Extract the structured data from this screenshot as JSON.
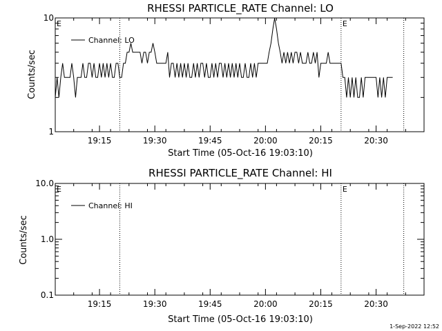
{
  "chart_data": [
    {
      "type": "line",
      "title": "RHESSI PARTICLE_RATE Channel: LO",
      "xlabel": "Start Time (05-Oct-16 19:03:10)",
      "ylabel": "Counts/sec",
      "yscale": "log",
      "ylim": [
        1,
        10
      ],
      "xlim_minutes": [
        0,
        100
      ],
      "x_ticks": [
        {
          "label": "19:15",
          "minute": 12
        },
        {
          "label": "19:30",
          "minute": 27
        },
        {
          "label": "19:45",
          "minute": 42
        },
        {
          "label": "20:00",
          "minute": 57
        },
        {
          "label": "20:15",
          "minute": 72
        },
        {
          "label": "20:30",
          "minute": 87
        }
      ],
      "y_ticks": [
        {
          "label": "1",
          "value": 1
        },
        {
          "label": "10",
          "value": 10
        }
      ],
      "markers": [
        {
          "minute": 17.5,
          "label": ""
        },
        {
          "minute": 77.5,
          "label": "E"
        },
        {
          "minute": 94.5,
          "label": ""
        }
      ],
      "start_marker_label": "E",
      "legend": {
        "position": "top-left",
        "entries": [
          "Channel: LO"
        ]
      },
      "series": [
        {
          "name": "Channel: LO",
          "step": 0.5,
          "start_minute": 0,
          "values": [
            2,
            3,
            2,
            3,
            4,
            3,
            3,
            3,
            3,
            4,
            3,
            2,
            3,
            3,
            3,
            4,
            3,
            3,
            4,
            4,
            3,
            4,
            3,
            3,
            4,
            3,
            4,
            3,
            4,
            3,
            4,
            3,
            3,
            4,
            4,
            3,
            3,
            4,
            4,
            5,
            5,
            6,
            5,
            5,
            5,
            5,
            5,
            4,
            5,
            5,
            4,
            5,
            5,
            6,
            5,
            4,
            4,
            4,
            4,
            4,
            4,
            5,
            3,
            4,
            4,
            3,
            4,
            3,
            4,
            3,
            4,
            3,
            4,
            3,
            3,
            4,
            3,
            4,
            3,
            4,
            4,
            3,
            4,
            3,
            3,
            4,
            3,
            4,
            3,
            4,
            4,
            3,
            4,
            3,
            4,
            3,
            4,
            3,
            4,
            3,
            4,
            3,
            3,
            4,
            3,
            3,
            4,
            3,
            4,
            3,
            4,
            4,
            4,
            4,
            4,
            4,
            5,
            6,
            8,
            11,
            8,
            6,
            5,
            4,
            5,
            4,
            5,
            4,
            5,
            4,
            5,
            5,
            4,
            5,
            4,
            4,
            4,
            5,
            4,
            4,
            5,
            4,
            5,
            3,
            4,
            4,
            4,
            4,
            5,
            4,
            4,
            4,
            4,
            4,
            4,
            4,
            3,
            3,
            2,
            3,
            2,
            3,
            2,
            3,
            2,
            2,
            3,
            2,
            3,
            3,
            3,
            3,
            3,
            3,
            3,
            2,
            3,
            2,
            3,
            2,
            3,
            3,
            3,
            3
          ]
        }
      ]
    },
    {
      "type": "line",
      "title": "RHESSI PARTICLE_RATE Channel: HI",
      "xlabel": "Start Time (05-Oct-16 19:03:10)",
      "ylabel": "Counts/sec",
      "yscale": "log",
      "ylim": [
        0.1,
        10
      ],
      "xlim_minutes": [
        0,
        100
      ],
      "x_ticks": [
        {
          "label": "19:15",
          "minute": 12
        },
        {
          "label": "19:30",
          "minute": 27
        },
        {
          "label": "19:45",
          "minute": 42
        },
        {
          "label": "20:00",
          "minute": 57
        },
        {
          "label": "20:15",
          "minute": 72
        },
        {
          "label": "20:30",
          "minute": 87
        }
      ],
      "y_ticks": [
        {
          "label": "0.1",
          "value": 0.1
        },
        {
          "label": "1.0",
          "value": 1
        },
        {
          "label": "10.0",
          "value": 10
        }
      ],
      "markers": [
        {
          "minute": 17.5,
          "label": ""
        },
        {
          "minute": 77.5,
          "label": "E"
        },
        {
          "minute": 94.5,
          "label": ""
        }
      ],
      "start_marker_label": "E",
      "legend": {
        "position": "top-left",
        "entries": [
          "Channel: HI"
        ]
      },
      "series": [
        {
          "name": "Channel: HI",
          "step": 0.5,
          "start_minute": 0,
          "values": []
        }
      ]
    }
  ],
  "footer": {
    "timestamp": "1-Sep-2022 12:52"
  }
}
